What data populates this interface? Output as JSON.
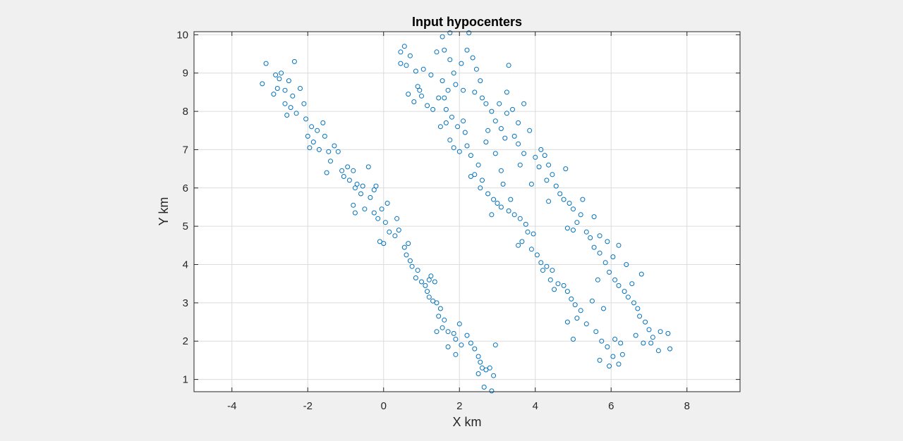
{
  "chart_data": {
    "type": "scatter",
    "title": "Input hypocenters",
    "xlabel": "X km",
    "ylabel": "Y km",
    "xlim": [
      -5,
      9.4
    ],
    "ylim": [
      0.68,
      10.08
    ],
    "xticks": [
      -4,
      -2,
      0,
      2,
      4,
      6,
      8
    ],
    "yticks": [
      1,
      2,
      3,
      4,
      5,
      6,
      7,
      8,
      9,
      10
    ],
    "xtick_labels": [
      "-4",
      "-2",
      "0",
      "2",
      "4",
      "6",
      "8"
    ],
    "ytick_labels": [
      "1",
      "2",
      "3",
      "4",
      "5",
      "6",
      "7",
      "8",
      "9",
      "10"
    ],
    "grid": true,
    "marker": "circle",
    "color": "#0072BD",
    "series": [
      {
        "points": [
          [
            -3.1,
            9.25
          ],
          [
            -3.2,
            8.72
          ],
          [
            -2.85,
            8.95
          ],
          [
            -2.7,
            9.0
          ],
          [
            -2.75,
            8.85
          ],
          [
            -2.5,
            8.8
          ],
          [
            -2.35,
            9.3
          ],
          [
            -2.6,
            8.55
          ],
          [
            -2.8,
            8.6
          ],
          [
            -2.4,
            8.4
          ],
          [
            -2.2,
            8.6
          ],
          [
            -2.9,
            8.45
          ],
          [
            -2.6,
            8.2
          ],
          [
            -2.45,
            8.1
          ],
          [
            -2.3,
            7.95
          ],
          [
            -2.1,
            8.2
          ],
          [
            -2.55,
            7.9
          ],
          [
            -2.05,
            7.8
          ],
          [
            -1.9,
            7.6
          ],
          [
            -1.75,
            7.5
          ],
          [
            -2.0,
            7.35
          ],
          [
            -1.6,
            7.7
          ],
          [
            -1.85,
            7.2
          ],
          [
            -1.55,
            7.35
          ],
          [
            -1.7,
            7.0
          ],
          [
            -1.45,
            6.95
          ],
          [
            -1.3,
            7.1
          ],
          [
            -1.2,
            6.95
          ],
          [
            -1.4,
            6.7
          ],
          [
            -1.5,
            6.4
          ],
          [
            -1.1,
            6.45
          ],
          [
            -0.95,
            6.55
          ],
          [
            -0.8,
            6.45
          ],
          [
            -0.9,
            6.2
          ],
          [
            -0.7,
            6.1
          ],
          [
            -0.55,
            6.05
          ],
          [
            -0.75,
            6.0
          ],
          [
            -0.4,
            6.55
          ],
          [
            -0.6,
            5.85
          ],
          [
            -0.35,
            5.75
          ],
          [
            -0.25,
            5.95
          ],
          [
            -0.2,
            6.05
          ],
          [
            -0.8,
            5.55
          ],
          [
            -0.75,
            5.35
          ],
          [
            -0.5,
            5.45
          ],
          [
            -0.25,
            5.35
          ],
          [
            -0.15,
            5.2
          ],
          [
            0.05,
            5.1
          ],
          [
            -0.05,
            5.45
          ],
          [
            0.1,
            5.6
          ],
          [
            0.15,
            4.85
          ],
          [
            0.3,
            4.75
          ],
          [
            0.4,
            4.9
          ],
          [
            0.0,
            4.55
          ],
          [
            0.55,
            4.45
          ],
          [
            0.6,
            4.25
          ],
          [
            0.7,
            4.1
          ],
          [
            0.75,
            3.95
          ],
          [
            0.9,
            3.85
          ],
          [
            0.85,
            3.65
          ],
          [
            1.0,
            3.55
          ],
          [
            1.1,
            3.45
          ],
          [
            1.15,
            3.3
          ],
          [
            1.2,
            3.15
          ],
          [
            1.3,
            3.05
          ],
          [
            1.4,
            3.0
          ],
          [
            1.35,
            3.55
          ],
          [
            1.25,
            3.7
          ],
          [
            1.5,
            2.85
          ],
          [
            1.45,
            2.65
          ],
          [
            1.6,
            2.55
          ],
          [
            1.55,
            2.35
          ],
          [
            1.7,
            2.25
          ],
          [
            1.85,
            2.2
          ],
          [
            1.4,
            2.25
          ],
          [
            2.0,
            2.45
          ],
          [
            1.9,
            2.05
          ],
          [
            2.05,
            1.9
          ],
          [
            2.2,
            2.15
          ],
          [
            2.3,
            1.95
          ],
          [
            2.4,
            1.8
          ],
          [
            1.9,
            1.65
          ],
          [
            2.5,
            1.6
          ],
          [
            2.55,
            1.45
          ],
          [
            2.6,
            1.3
          ],
          [
            2.7,
            1.25
          ],
          [
            2.5,
            1.15
          ],
          [
            2.9,
            1.1
          ],
          [
            2.8,
            1.3
          ],
          [
            2.85,
            0.7
          ],
          [
            2.65,
            0.8
          ],
          [
            2.6,
            0.65
          ],
          [
            2.95,
            1.9
          ],
          [
            1.7,
            1.85
          ],
          [
            1.2,
            3.6
          ],
          [
            0.65,
            4.55
          ],
          [
            0.35,
            5.2
          ],
          [
            -0.1,
            4.6
          ],
          [
            -1.05,
            6.3
          ],
          [
            -1.95,
            7.05
          ],
          [
            0.45,
            9.55
          ],
          [
            0.55,
            9.7
          ],
          [
            0.7,
            9.45
          ],
          [
            0.85,
            9.05
          ],
          [
            0.6,
            9.2
          ],
          [
            0.45,
            9.25
          ],
          [
            1.05,
            9.1
          ],
          [
            1.25,
            8.95
          ],
          [
            0.9,
            8.65
          ],
          [
            1.0,
            8.4
          ],
          [
            1.15,
            8.15
          ],
          [
            1.3,
            8.05
          ],
          [
            0.65,
            8.45
          ],
          [
            0.8,
            8.25
          ],
          [
            1.45,
            8.35
          ],
          [
            1.55,
            8.8
          ],
          [
            1.4,
            9.55
          ],
          [
            1.55,
            9.95
          ],
          [
            1.75,
            10.05
          ],
          [
            1.6,
            9.6
          ],
          [
            1.75,
            9.35
          ],
          [
            1.85,
            9.0
          ],
          [
            1.9,
            8.7
          ],
          [
            1.7,
            8.55
          ],
          [
            1.65,
            8.05
          ],
          [
            1.8,
            7.85
          ],
          [
            1.95,
            7.6
          ],
          [
            2.1,
            7.75
          ],
          [
            1.75,
            7.25
          ],
          [
            1.85,
            7.05
          ],
          [
            2.0,
            6.95
          ],
          [
            2.2,
            7.1
          ],
          [
            1.5,
            7.6
          ],
          [
            1.65,
            7.7
          ],
          [
            2.1,
            8.55
          ],
          [
            2.05,
            9.25
          ],
          [
            2.2,
            9.6
          ],
          [
            2.25,
            10.05
          ],
          [
            2.35,
            9.4
          ],
          [
            2.45,
            9.1
          ],
          [
            2.55,
            8.8
          ],
          [
            2.4,
            8.5
          ],
          [
            2.6,
            8.35
          ],
          [
            2.7,
            8.2
          ],
          [
            2.85,
            8.0
          ],
          [
            2.95,
            7.75
          ],
          [
            3.1,
            7.55
          ],
          [
            3.2,
            7.3
          ],
          [
            2.75,
            7.5
          ],
          [
            3.05,
            8.2
          ],
          [
            3.25,
            8.5
          ],
          [
            3.4,
            8.05
          ],
          [
            3.55,
            7.7
          ],
          [
            3.45,
            7.35
          ],
          [
            3.55,
            7.15
          ],
          [
            3.7,
            6.9
          ],
          [
            3.85,
            7.5
          ],
          [
            3.7,
            8.2
          ],
          [
            4.0,
            6.8
          ],
          [
            4.15,
            7.0
          ],
          [
            4.25,
            6.85
          ],
          [
            4.1,
            6.55
          ],
          [
            4.35,
            6.6
          ],
          [
            4.45,
            6.35
          ],
          [
            4.3,
            6.2
          ],
          [
            4.55,
            6.05
          ],
          [
            4.65,
            5.85
          ],
          [
            4.8,
            6.5
          ],
          [
            4.75,
            5.7
          ],
          [
            4.9,
            5.6
          ],
          [
            5.0,
            5.45
          ],
          [
            5.2,
            5.3
          ],
          [
            5.1,
            5.1
          ],
          [
            5.0,
            4.9
          ],
          [
            5.35,
            4.85
          ],
          [
            5.45,
            4.7
          ],
          [
            5.55,
            4.45
          ],
          [
            5.7,
            4.3
          ],
          [
            5.85,
            4.05
          ],
          [
            5.95,
            3.8
          ],
          [
            6.1,
            3.6
          ],
          [
            6.2,
            3.45
          ],
          [
            6.35,
            3.3
          ],
          [
            6.45,
            3.15
          ],
          [
            6.6,
            3.0
          ],
          [
            6.7,
            2.85
          ],
          [
            6.75,
            2.65
          ],
          [
            6.9,
            2.5
          ],
          [
            7.0,
            2.3
          ],
          [
            7.1,
            2.1
          ],
          [
            7.05,
            1.95
          ],
          [
            7.25,
            1.75
          ],
          [
            7.55,
            1.8
          ],
          [
            7.5,
            2.2
          ],
          [
            7.3,
            2.25
          ],
          [
            6.85,
            1.95
          ],
          [
            6.65,
            2.15
          ],
          [
            6.8,
            3.75
          ],
          [
            6.55,
            3.5
          ],
          [
            6.4,
            4.0
          ],
          [
            6.2,
            4.5
          ],
          [
            5.65,
            3.6
          ],
          [
            5.8,
            2.85
          ],
          [
            5.5,
            3.05
          ],
          [
            5.35,
            2.45
          ],
          [
            5.6,
            2.25
          ],
          [
            5.75,
            2.0
          ],
          [
            5.9,
            1.85
          ],
          [
            6.05,
            1.6
          ],
          [
            6.2,
            1.4
          ],
          [
            6.3,
            1.65
          ],
          [
            5.95,
            1.35
          ],
          [
            5.7,
            1.5
          ],
          [
            6.1,
            2.05
          ],
          [
            6.25,
            1.95
          ],
          [
            2.3,
            6.85
          ],
          [
            2.5,
            6.6
          ],
          [
            2.4,
            6.35
          ],
          [
            2.6,
            6.2
          ],
          [
            2.55,
            6.0
          ],
          [
            2.75,
            5.85
          ],
          [
            2.9,
            5.7
          ],
          [
            3.0,
            5.6
          ],
          [
            3.1,
            5.5
          ],
          [
            3.3,
            5.4
          ],
          [
            3.15,
            6.1
          ],
          [
            3.45,
            5.3
          ],
          [
            3.6,
            5.2
          ],
          [
            3.75,
            5.05
          ],
          [
            3.8,
            4.85
          ],
          [
            3.65,
            4.6
          ],
          [
            3.55,
            4.5
          ],
          [
            3.9,
            4.4
          ],
          [
            4.05,
            4.25
          ],
          [
            4.15,
            4.05
          ],
          [
            4.3,
            3.95
          ],
          [
            4.45,
            3.85
          ],
          [
            4.4,
            3.6
          ],
          [
            4.6,
            3.5
          ],
          [
            4.75,
            3.45
          ],
          [
            4.85,
            3.3
          ],
          [
            4.95,
            3.1
          ],
          [
            5.05,
            2.95
          ],
          [
            5.2,
            2.8
          ],
          [
            5.1,
            2.6
          ],
          [
            4.85,
            2.5
          ],
          [
            5.0,
            2.05
          ],
          [
            4.5,
            3.35
          ],
          [
            4.2,
            3.85
          ],
          [
            3.95,
            4.8
          ],
          [
            2.85,
            5.3
          ],
          [
            2.3,
            6.3
          ],
          [
            2.15,
            7.45
          ],
          [
            1.6,
            8.35
          ],
          [
            0.95,
            8.55
          ],
          [
            3.3,
            9.2
          ],
          [
            3.1,
            6.45
          ],
          [
            3.25,
            7.95
          ],
          [
            3.6,
            6.6
          ],
          [
            4.85,
            4.95
          ],
          [
            5.25,
            5.7
          ],
          [
            5.55,
            5.25
          ],
          [
            5.7,
            4.75
          ],
          [
            5.9,
            4.6
          ],
          [
            6.05,
            4.2
          ],
          [
            3.35,
            5.7
          ],
          [
            3.9,
            6.1
          ],
          [
            4.35,
            5.65
          ],
          [
            2.95,
            6.9
          ],
          [
            2.7,
            7.2
          ]
        ]
      }
    ]
  }
}
